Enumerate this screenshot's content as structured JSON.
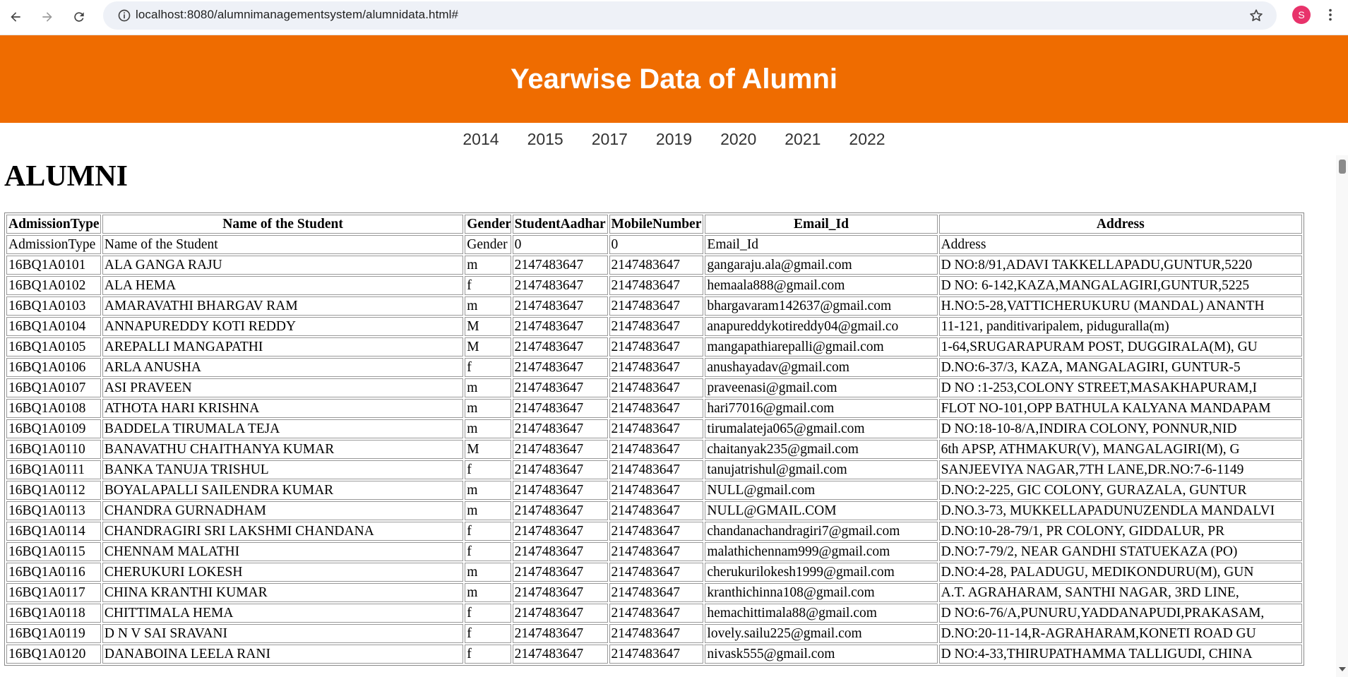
{
  "browser": {
    "url": "localhost:8080/alumnimanagementsystem/alumnidata.html#",
    "profile_initial": "S"
  },
  "page": {
    "banner_title": "Yearwise Data of Alumni",
    "years": [
      "2014",
      "2015",
      "2017",
      "2019",
      "2020",
      "2021",
      "2022"
    ],
    "heading": "ALUMNI",
    "accent_color": "#ef6c00"
  },
  "table": {
    "headers": [
      "AdmissionType",
      "Name of the Student",
      "Gender",
      "StudentAadhar",
      "MobileNumber",
      "Email_Id",
      "Address"
    ],
    "rows": [
      [
        "AdmissionType",
        "Name of the Student",
        "Gender",
        "0",
        "0",
        "Email_Id",
        "Address"
      ],
      [
        "16BQ1A0101",
        "ALA GANGA RAJU",
        "m",
        "2147483647",
        "2147483647",
        "gangaraju.ala@gmail.com",
        "D NO:8/91,ADAVI TAKKELLAPADU,GUNTUR,5220"
      ],
      [
        "16BQ1A0102",
        "ALA HEMA",
        "f",
        "2147483647",
        "2147483647",
        "hemaala888@gmail.com",
        "D NO: 6-142,KAZA,MANGALAGIRI,GUNTUR,5225"
      ],
      [
        "16BQ1A0103",
        "AMARAVATHI BHARGAV RAM",
        "m",
        "2147483647",
        "2147483647",
        "bhargavaram142637@gmail.com",
        "H.NO:5-28,VATTICHERUKURU (MANDAL) ANANTH"
      ],
      [
        "16BQ1A0104",
        "ANNAPUREDDY KOTI REDDY",
        "M",
        "2147483647",
        "2147483647",
        "anapureddykotireddy04@gmail.co",
        "11-121, panditivaripalem, piduguralla(m)"
      ],
      [
        "16BQ1A0105",
        "AREPALLI MANGAPATHI",
        "M",
        "2147483647",
        "2147483647",
        "mangapathiarepalli@gmail.com",
        "1-64,SRUGARAPURAM POST, DUGGIRALA(M), GU"
      ],
      [
        "16BQ1A0106",
        "ARLA ANUSHA",
        "f",
        "2147483647",
        "2147483647",
        "anushayadav@gmail.com",
        "D.NO:6-37/3, KAZA, MANGALAGIRI, GUNTUR-5"
      ],
      [
        "16BQ1A0107",
        "ASI PRAVEEN",
        "m",
        "2147483647",
        "2147483647",
        "praveenasi@gmail.com",
        "D NO :1-253,COLONY STREET,MASAKHAPURAM,I"
      ],
      [
        "16BQ1A0108",
        "ATHOTA HARI KRISHNA",
        "m",
        "2147483647",
        "2147483647",
        "hari77016@gmail.com",
        "FLOT NO-101,OPP BATHULA KALYANA MANDAPAM"
      ],
      [
        "16BQ1A0109",
        "BADDELA TIRUMALA TEJA",
        "m",
        "2147483647",
        "2147483647",
        "tirumalateja065@gmail.com",
        "D NO:18-10-8/A,INDIRA COLONY, PONNUR,NID"
      ],
      [
        "16BQ1A0110",
        "BANAVATHU CHAITHANYA KUMAR",
        "M",
        "2147483647",
        "2147483647",
        "chaitanyak235@gmail.com",
        "6th APSP, ATHMAKUR(V), MANGALAGIRI(M), G"
      ],
      [
        "16BQ1A0111",
        "BANKA TANUJA TRISHUL",
        "f",
        "2147483647",
        "2147483647",
        "tanujatrishul@gmail.com",
        "SANJEEVIYA NAGAR,7TH LANE,DR.NO:7-6-1149"
      ],
      [
        "16BQ1A0112",
        "BOYALAPALLI SAILENDRA KUMAR",
        "m",
        "2147483647",
        "2147483647",
        "NULL@gmail.com",
        "D.NO:2-225, GIC COLONY, GURAZALA, GUNTUR"
      ],
      [
        "16BQ1A0113",
        "CHANDRA GURNADHAM",
        "m",
        "2147483647",
        "2147483647",
        "NULL@GMAIL.COM",
        "D.NO.3-73, MUKKELLAPADUNUZENDLA MANDALVI"
      ],
      [
        "16BQ1A0114",
        "CHANDRAGIRI SRI LAKSHMI CHANDANA",
        "f",
        "2147483647",
        "2147483647",
        "chandanachandragiri7@gmail.com",
        "D.NO:10-28-79/1, PR COLONY, GIDDALUR, PR"
      ],
      [
        "16BQ1A0115",
        "CHENNAM MALATHI",
        "f",
        "2147483647",
        "2147483647",
        "malathichennam999@gmail.com",
        "D.NO:7-79/2, NEAR GANDHI STATUEKAZA (PO)"
      ],
      [
        "16BQ1A0116",
        "CHERUKURI LOKESH",
        "m",
        "2147483647",
        "2147483647",
        "cherukurilokesh1999@gmail.com",
        "D.NO:4-28, PALADUGU, MEDIKONDURU(M), GUN"
      ],
      [
        "16BQ1A0117",
        "CHINA KRANTHI KUMAR",
        "m",
        "2147483647",
        "2147483647",
        "kranthichinna108@gmail.com",
        "A.T. AGRAHARAM, SANTHI NAGAR, 3RD LINE,"
      ],
      [
        "16BQ1A0118",
        "CHITTIMALA HEMA",
        "f",
        "2147483647",
        "2147483647",
        "hemachittimala88@gmail.com",
        "D NO:6-76/A,PUNURU,YADDANAPUDI,PRAKASAM,"
      ],
      [
        "16BQ1A0119",
        "D N V SAI SRAVANI",
        "f",
        "2147483647",
        "2147483647",
        "lovely.sailu225@gmail.com",
        "D.NO:20-11-14,R-AGRAHARAM,KONETI ROAD GU"
      ],
      [
        "16BQ1A0120",
        "DANABOINA LEELA RANI",
        "f",
        "2147483647",
        "2147483647",
        "nivask555@gmail.com",
        "D NO:4-33,THIRUPATHAMMA TALLIGUDI, CHINA"
      ]
    ]
  }
}
